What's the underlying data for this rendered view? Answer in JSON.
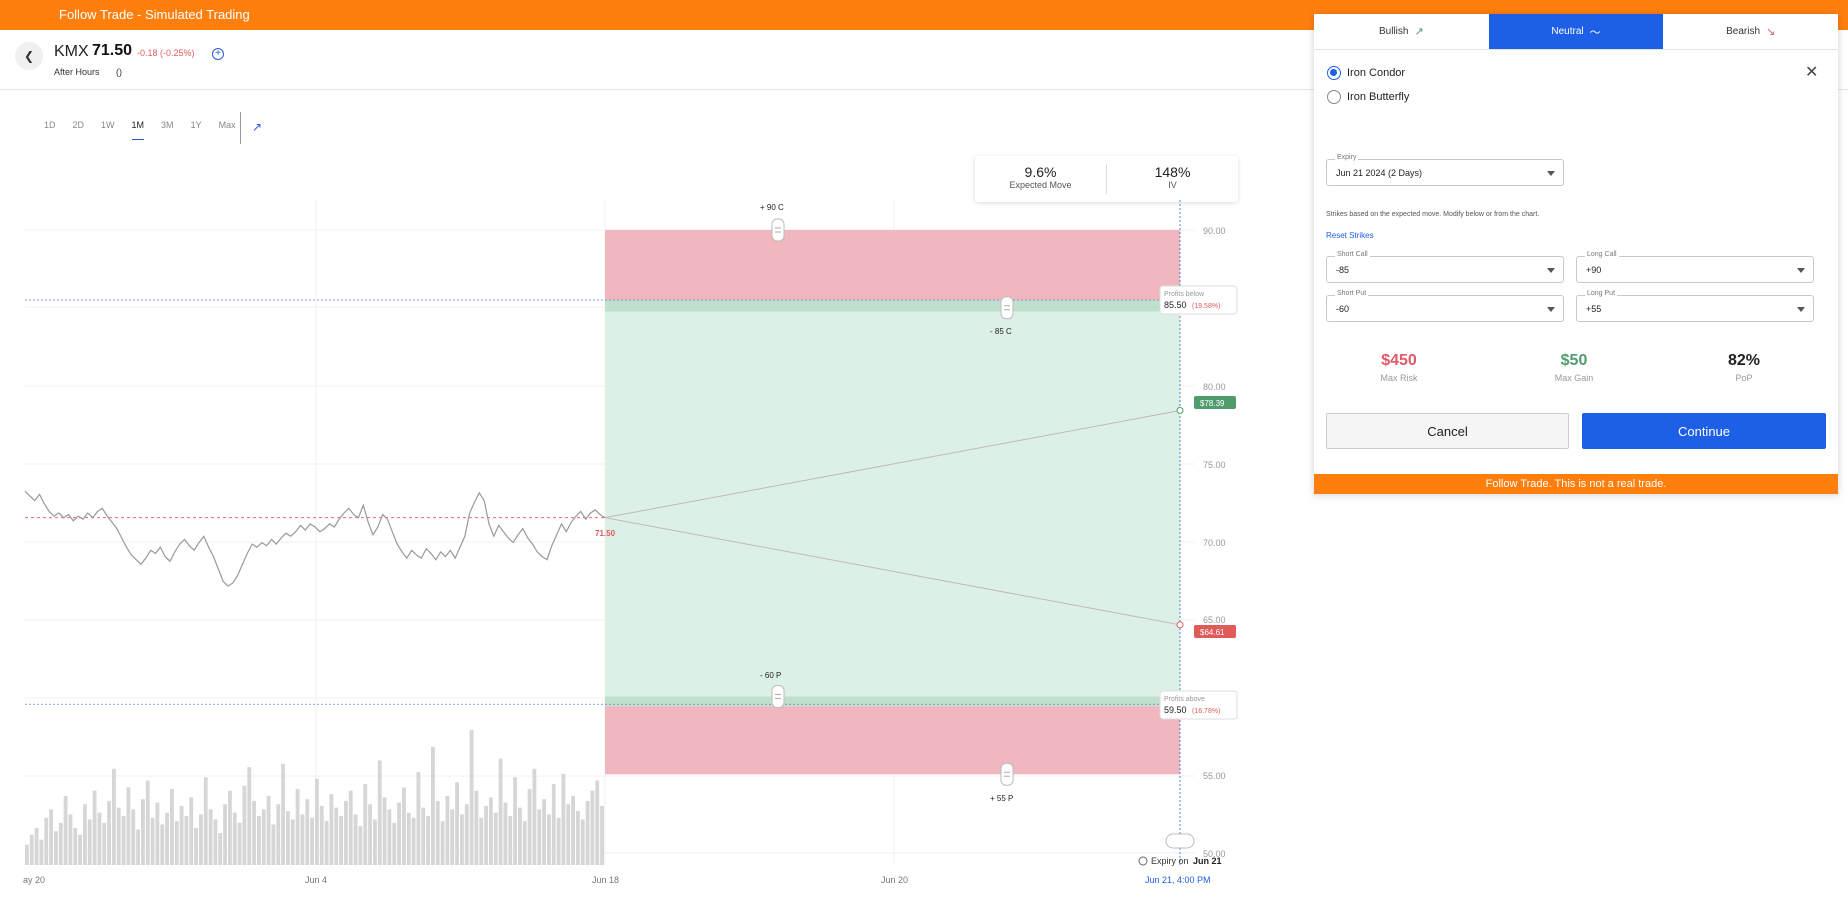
{
  "app": {
    "title": "Follow Trade - Simulated Trading"
  },
  "quote": {
    "ticker": "KMX",
    "price": "71.50",
    "change": "-0.18 (-0.25%)",
    "session": "After Hours",
    "session_extra": "()"
  },
  "range_tabs": [
    "1D",
    "2D",
    "1W",
    "1M",
    "3M",
    "1Y",
    "Max"
  ],
  "active_range": "1M",
  "stats": {
    "expected_move": {
      "value": "9.6%",
      "label": "Expected Move"
    },
    "iv": {
      "value": "148%",
      "label": "IV"
    }
  },
  "chart_data": {
    "type": "line",
    "y_ticks": [
      "90.00",
      "80.00",
      "75.00",
      "70.00",
      "65.00",
      "55.00",
      "50.00"
    ],
    "y_range": [
      50,
      90
    ],
    "x_ticks": [
      "ay 20",
      "Jun 4",
      "Jun 18",
      "Jun 20"
    ],
    "expiry_tick": "Jun 21, 4:00 PM",
    "current_price_label": "71.50",
    "projection_high": "$78.39",
    "projection_low": "$64.61",
    "strike_labels": {
      "long_call": "+ 90 C",
      "short_call": "- 85 C",
      "short_put": "- 60 P",
      "long_put": "+ 55 P"
    },
    "profits_below": {
      "label": "Profits below",
      "value": "85.50",
      "pct": "(19.58%)"
    },
    "profits_above": {
      "label": "Profits above",
      "value": "59.50",
      "pct": "(16.78%)"
    },
    "expiry_note_prefix": "Expiry on",
    "expiry_note_date": "Jun 21",
    "price_series": [
      73.2,
      72.9,
      72.6,
      73.0,
      72.4,
      71.9,
      71.6,
      71.8,
      71.5,
      71.7,
      71.3,
      71.6,
      71.4,
      71.8,
      71.5,
      71.9,
      72.1,
      71.6,
      71.2,
      70.8,
      70.2,
      69.6,
      69.1,
      68.8,
      68.5,
      68.9,
      69.4,
      69.2,
      69.6,
      69.0,
      68.7,
      69.3,
      69.8,
      70.1,
      69.7,
      69.4,
      69.9,
      70.3,
      69.6,
      69.0,
      68.2,
      67.4,
      67.1,
      67.3,
      67.8,
      68.5,
      69.2,
      69.8,
      69.6,
      69.9,
      69.7,
      70.1,
      69.8,
      70.2,
      70.5,
      70.3,
      70.6,
      71.0,
      70.7,
      71.1,
      70.9,
      70.6,
      70.8,
      71.1,
      70.9,
      71.4,
      71.8,
      72.1,
      71.7,
      71.5,
      72.3,
      71.2,
      70.4,
      70.9,
      71.7,
      71.4,
      70.6,
      69.8,
      69.3,
      68.9,
      69.4,
      69.1,
      68.9,
      69.5,
      69.2,
      68.8,
      69.3,
      69.0,
      69.4,
      68.9,
      69.6,
      70.3,
      71.8,
      72.5,
      73.1,
      72.6,
      71.1,
      70.3,
      71.0,
      70.6,
      70.2,
      69.9,
      70.4,
      70.8,
      70.2,
      69.8,
      69.3,
      69.0,
      68.8,
      69.7,
      70.4,
      71.1,
      70.6,
      71.2,
      71.6,
      71.9,
      71.4,
      71.8,
      72.0,
      71.7,
      71.5
    ],
    "volume_series": [
      12,
      18,
      22,
      15,
      28,
      33,
      20,
      25,
      41,
      30,
      22,
      18,
      36,
      27,
      44,
      31,
      25,
      38,
      57,
      34,
      29,
      46,
      33,
      21,
      39,
      50,
      28,
      37,
      24,
      31,
      45,
      26,
      35,
      29,
      40,
      22,
      30,
      52,
      33,
      27,
      19,
      36,
      44,
      31,
      25,
      47,
      58,
      38,
      29,
      33,
      41,
      24,
      36,
      60,
      32,
      27,
      45,
      30,
      39,
      28,
      51,
      35,
      26,
      42,
      34,
      29,
      38,
      44,
      30,
      23,
      48,
      36,
      27,
      62,
      40,
      33,
      25,
      37,
      46,
      31,
      28,
      55,
      34,
      29,
      70,
      38,
      26,
      41,
      33,
      49,
      30,
      36,
      80,
      44,
      28,
      35,
      40,
      31,
      63,
      37,
      29,
      52,
      34,
      26,
      45,
      57,
      33,
      39,
      30,
      48,
      28,
      54,
      36,
      41,
      32,
      27,
      38,
      44,
      50,
      35
    ],
    "colors": {
      "risk": "#f0b7bf",
      "profit": "#ddf0e6",
      "profit_edge": "#bfe0cd",
      "price_line": "#999999",
      "current": "#e05a5a",
      "accent": "#1e5fe8",
      "high_tag": "#4f9d6d",
      "low_tag": "#e05a5a"
    }
  },
  "panel": {
    "tabs": [
      {
        "label": "Bullish",
        "icon": "↗"
      },
      {
        "label": "Neutral",
        "icon": "〜"
      },
      {
        "label": "Bearish",
        "icon": "↘"
      }
    ],
    "active_tab": "Neutral",
    "strategies": [
      "Iron Condor",
      "Iron Butterfly"
    ],
    "selected_strategy": "Iron Condor",
    "expiry": {
      "label": "Expiry",
      "value": "Jun 21 2024 (2 Days)"
    },
    "note": "Strikes based on the expected move. Modify below or from the chart.",
    "reset_label": "Reset Strikes",
    "strikes": {
      "short_call": {
        "label": "Short Call",
        "value": "-85"
      },
      "long_call": {
        "label": "Long Call",
        "value": "+90"
      },
      "short_put": {
        "label": "Short Put",
        "value": "-60"
      },
      "long_put": {
        "label": "Long Put",
        "value": "+55"
      }
    },
    "metrics": {
      "max_risk": {
        "value": "$450",
        "label": "Max Risk"
      },
      "max_gain": {
        "value": "$50",
        "label": "Max Gain"
      },
      "pop": {
        "value": "82%",
        "label": "PoP"
      }
    },
    "cancel_label": "Cancel",
    "continue_label": "Continue",
    "footer": "Follow Trade. This is not a real trade."
  }
}
